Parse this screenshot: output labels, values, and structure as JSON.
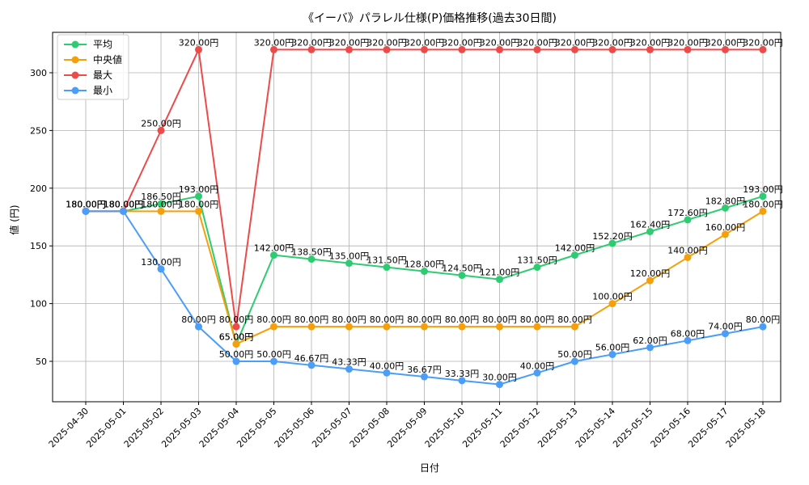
{
  "chart_data": {
    "type": "line",
    "title": "《イーバ》パラレル仕様(P)価格推移(過去30日間)",
    "xlabel": "日付",
    "ylabel": "値 (円)",
    "categories": [
      "2025-04-30",
      "2025-05-01",
      "2025-05-02",
      "2025-05-03",
      "2025-05-04",
      "2025-05-05",
      "2025-05-06",
      "2025-05-07",
      "2025-05-08",
      "2025-05-09",
      "2025-05-10",
      "2025-05-11",
      "2025-05-12",
      "2025-05-13",
      "2025-05-14",
      "2025-05-15",
      "2025-05-16",
      "2025-05-17",
      "2025-05-18"
    ],
    "ylim": [
      15,
      335
    ],
    "yticks": [
      50,
      100,
      150,
      200,
      250,
      300
    ],
    "grid": true,
    "legend_position": "top-left",
    "value_suffix": "円",
    "series": [
      {
        "name": "平均",
        "color": "#2ecc71",
        "values": [
          180,
          180,
          186.5,
          193,
          65,
          142,
          138.5,
          135,
          131.5,
          128,
          124.5,
          121,
          131.5,
          142,
          152.2,
          162.4,
          172.6,
          182.8,
          193
        ]
      },
      {
        "name": "中央値",
        "color": "#f5a00a",
        "values": [
          180,
          180,
          180,
          180,
          65,
          80,
          80,
          80,
          80,
          80,
          80,
          80,
          80,
          80,
          100,
          120,
          140,
          160,
          180
        ]
      },
      {
        "name": "最大",
        "color": "#ee4a4a",
        "values": [
          180,
          180,
          250,
          320,
          80,
          320,
          320,
          320,
          320,
          320,
          320,
          320,
          320,
          320,
          320,
          320,
          320,
          320,
          320
        ]
      },
      {
        "name": "最小",
        "color": "#4a9df8",
        "values": [
          180,
          180,
          130,
          80,
          50,
          50,
          46.67,
          43.33,
          40,
          36.67,
          33.33,
          30,
          40,
          50,
          56,
          62,
          68,
          74,
          80
        ]
      }
    ]
  }
}
